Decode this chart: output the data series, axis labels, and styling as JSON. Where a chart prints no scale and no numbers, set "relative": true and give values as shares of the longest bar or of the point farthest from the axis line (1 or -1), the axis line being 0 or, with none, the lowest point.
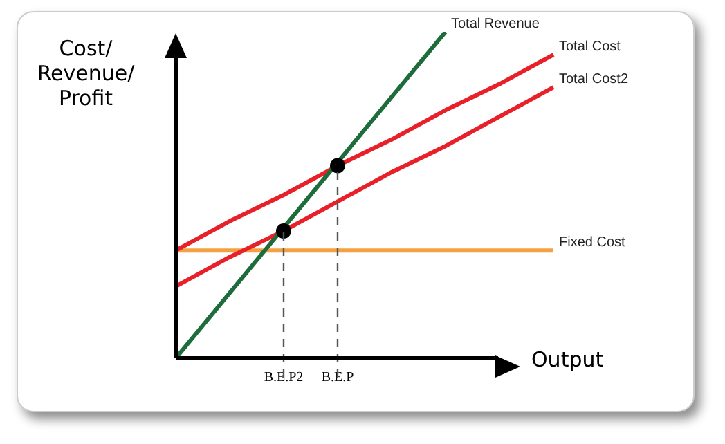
{
  "chart_data": {
    "type": "line",
    "relative": true,
    "ylabel": "Cost/Revenue/Profit",
    "xlabel": "Output",
    "legend": false,
    "grid": false,
    "marker": "none",
    "line_style": "solid",
    "categories": [
      null,
      null,
      "B.E.P2",
      "B.E.P",
      null,
      null,
      null,
      null
    ],
    "series": [
      {
        "name": "Total Revenue",
        "color": "#1e6b3c",
        "values": [
          0,
          0.2,
          0.4,
          0.6,
          0.8,
          1.0,
          null,
          null
        ]
      },
      {
        "name": "Total Cost",
        "color": "#e8202a",
        "values": [
          0.33,
          0.42,
          0.5,
          0.59,
          0.67,
          0.76,
          0.84,
          0.93
        ]
      },
      {
        "name": "Total Cost2",
        "color": "#e8202a",
        "values": [
          0.22,
          0.31,
          0.39,
          0.48,
          0.57,
          0.65,
          0.74,
          0.83
        ]
      },
      {
        "name": "Fixed Cost",
        "color": "#f5a040",
        "values": [
          0.33,
          0.33,
          0.33,
          0.33,
          0.33,
          0.33,
          0.33,
          0.33
        ]
      },
      {
        "type": "scatter",
        "marker": "circle",
        "color": "#000000",
        "x": [
          "B.E.P2",
          "B.E.P"
        ],
        "values": [
          0.39,
          0.59
        ]
      }
    ],
    "ref_lines": [
      {
        "axis": "x",
        "value": "B.E.P2",
        "color": "#555555",
        "line_style": "dashed"
      },
      {
        "axis": "x",
        "value": "B.E.P",
        "color": "#555555",
        "line_style": "dashed"
      }
    ]
  }
}
